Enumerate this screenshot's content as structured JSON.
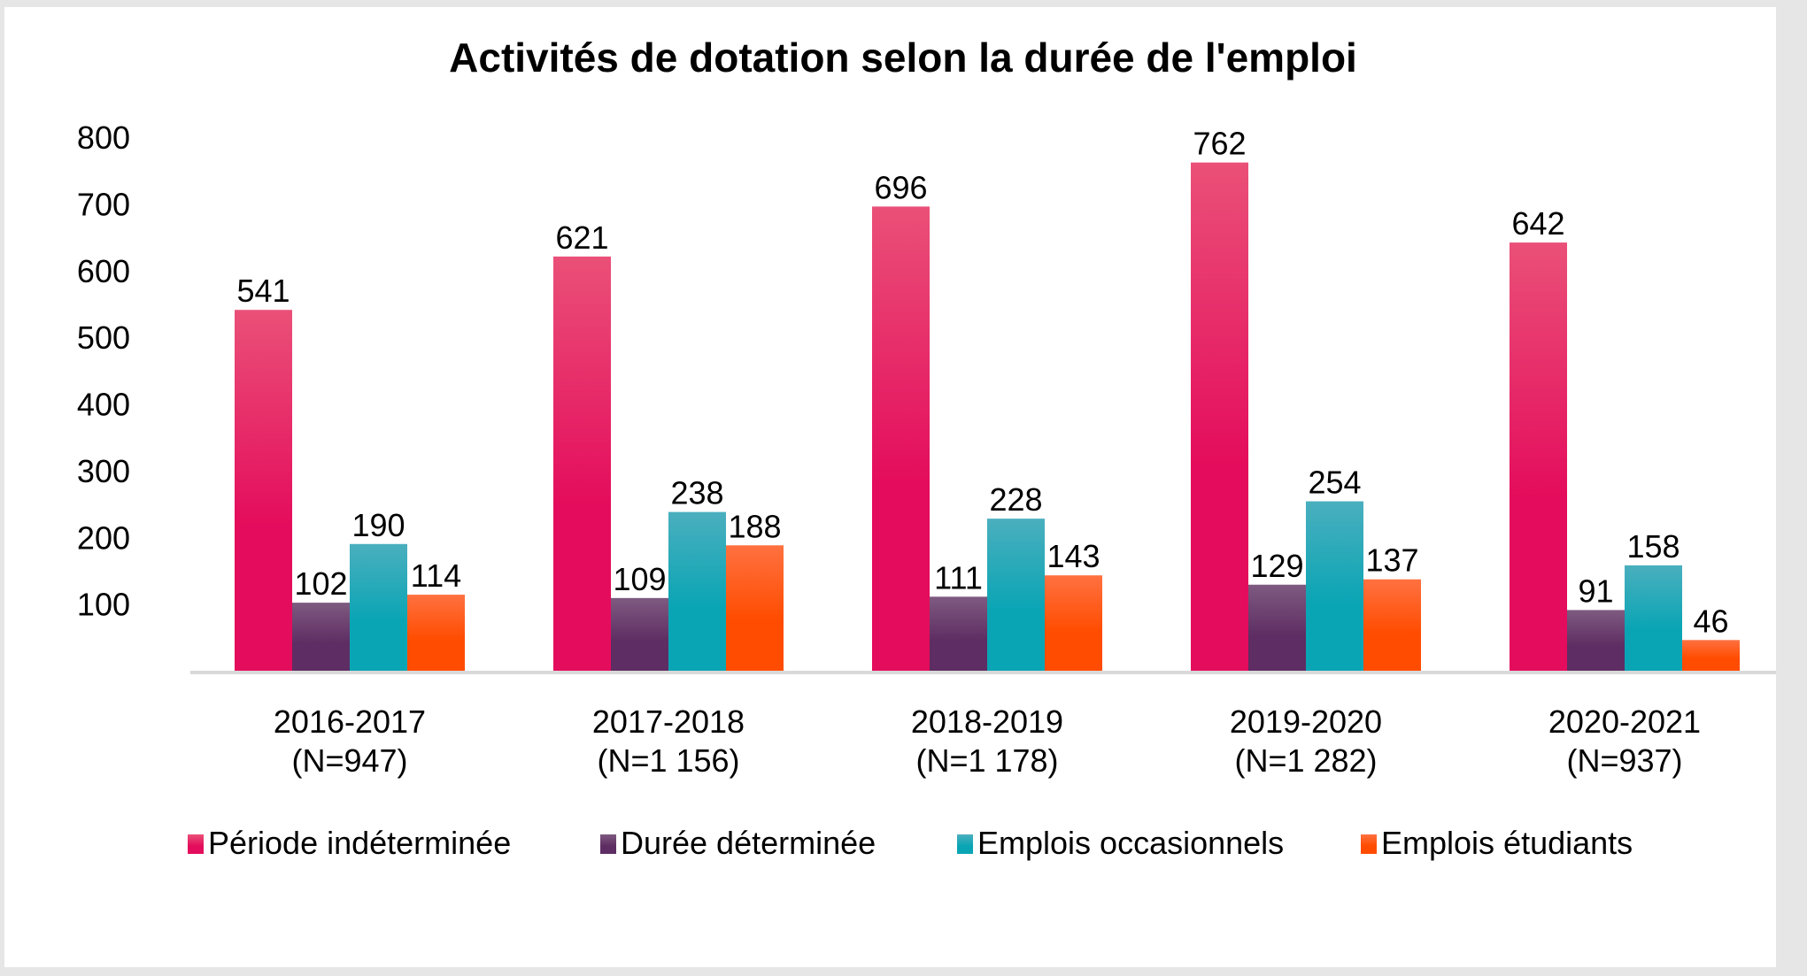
{
  "chart_data": {
    "type": "bar",
    "title": "Activités de dotation selon la durée de l'emploi",
    "xlabel": "",
    "ylabel": "",
    "ylim": [
      0,
      800
    ],
    "yticks": [
      100,
      200,
      300,
      400,
      500,
      600,
      700,
      800
    ],
    "grid": false,
    "legend_position": "bottom",
    "categories": [
      [
        "2016-2017",
        "(N=947)"
      ],
      [
        "2017-2018",
        "(N=1 156)"
      ],
      [
        "2018-2019",
        "(N=1 178)"
      ],
      [
        "2019-2020",
        "(N=1 282)"
      ],
      [
        "2020-2021",
        "(N=937)"
      ]
    ],
    "series": [
      {
        "name": "Période indéterminée",
        "color": "#e40c5c",
        "color_light": "#ea5078",
        "values": [
          541,
          621,
          696,
          762,
          642
        ]
      },
      {
        "name": "Durée déterminée",
        "color": "#5e2d63",
        "color_light": "#7e5a80",
        "values": [
          102,
          109,
          111,
          129,
          91
        ]
      },
      {
        "name": "Emplois occasionnels",
        "color": "#0aa5b5",
        "color_light": "#4aafbe",
        "values": [
          190,
          238,
          228,
          254,
          158
        ]
      },
      {
        "name": "Emplois étudiants",
        "color": "#ff4c00",
        "color_light": "#ff7140",
        "values": [
          114,
          188,
          143,
          137,
          46
        ]
      }
    ]
  },
  "colors": {
    "axis_line": "#d9d9d9",
    "background": "#ffffff",
    "outer_background": "#e6e6e6"
  }
}
